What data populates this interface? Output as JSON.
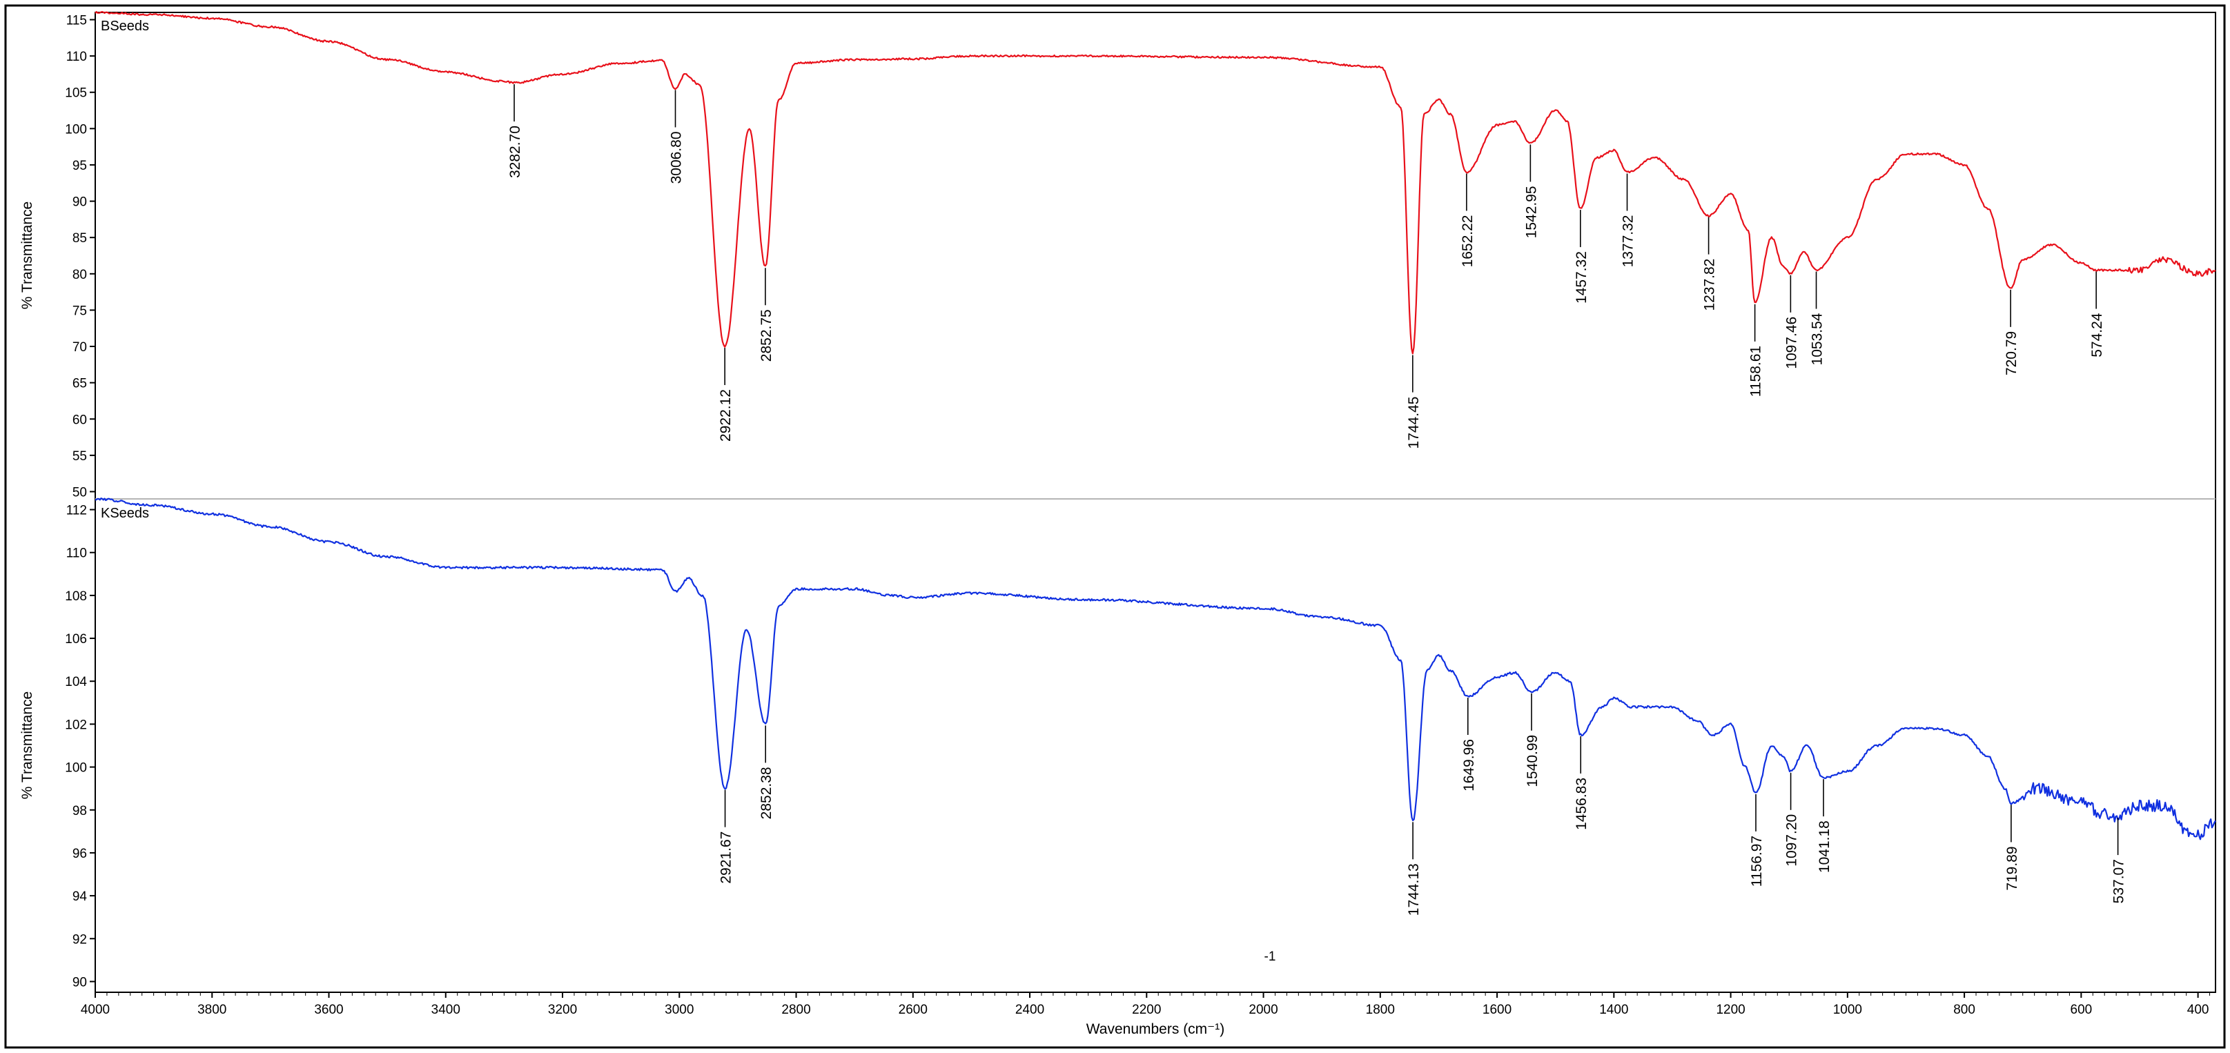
{
  "chart_data": [
    {
      "type": "line",
      "panel_label": "BSeeds",
      "ylabel": "% Transmittance",
      "xlabel": "",
      "xlim": [
        4000,
        370
      ],
      "ylim": [
        49,
        116
      ],
      "x_reversed": true,
      "yticks": [
        50,
        55,
        60,
        65,
        70,
        75,
        80,
        85,
        90,
        95,
        100,
        105,
        110,
        115
      ],
      "color": "#e8101a",
      "baseline_points": [
        [
          4000,
          116
        ],
        [
          3900,
          115.7
        ],
        [
          3800,
          115.2
        ],
        [
          3700,
          114
        ],
        [
          3600,
          112
        ],
        [
          3500,
          109.5
        ],
        [
          3400,
          107.8
        ],
        [
          3300,
          106.5
        ],
        [
          3282.7,
          106.3
        ],
        [
          3200,
          107.5
        ],
        [
          3100,
          109
        ],
        [
          3030,
          109.4
        ],
        [
          3006.8,
          105.5
        ],
        [
          2990,
          107.5
        ],
        [
          2965,
          106
        ],
        [
          2922.12,
          70
        ],
        [
          2880,
          100
        ],
        [
          2852.75,
          81
        ],
        [
          2830,
          104
        ],
        [
          2800,
          109
        ],
        [
          2700,
          109.5
        ],
        [
          2600,
          109.6
        ],
        [
          2500,
          110
        ],
        [
          2300,
          110
        ],
        [
          2000,
          109.8
        ],
        [
          1800,
          108.5
        ],
        [
          1765,
          103
        ],
        [
          1744.45,
          69
        ],
        [
          1725,
          102
        ],
        [
          1700,
          104
        ],
        [
          1680,
          102
        ],
        [
          1652.22,
          94
        ],
        [
          1600,
          100.5
        ],
        [
          1570,
          101
        ],
        [
          1542.95,
          98
        ],
        [
          1500,
          102.5
        ],
        [
          1480,
          101
        ],
        [
          1457.32,
          89
        ],
        [
          1430,
          96
        ],
        [
          1400,
          97
        ],
        [
          1377.32,
          94
        ],
        [
          1330,
          96
        ],
        [
          1280,
          93
        ],
        [
          1237.82,
          88
        ],
        [
          1200,
          91
        ],
        [
          1170,
          86
        ],
        [
          1158.61,
          76
        ],
        [
          1130,
          85
        ],
        [
          1110,
          81
        ],
        [
          1097.46,
          80
        ],
        [
          1075,
          83
        ],
        [
          1053.54,
          80.5
        ],
        [
          1000,
          85
        ],
        [
          950,
          93
        ],
        [
          900,
          96.5
        ],
        [
          850,
          96.5
        ],
        [
          800,
          95
        ],
        [
          760,
          89
        ],
        [
          720.79,
          78
        ],
        [
          700,
          82
        ],
        [
          650,
          84
        ],
        [
          600,
          81.5
        ],
        [
          574.24,
          80.5
        ],
        [
          500,
          80.5
        ],
        [
          460,
          82
        ],
        [
          400,
          80
        ],
        [
          370,
          80.5
        ]
      ],
      "annotations": [
        {
          "x": 3282.7,
          "y": 106.3,
          "label": "3282.70"
        },
        {
          "x": 3006.8,
          "y": 105.5,
          "label": "3006.80"
        },
        {
          "x": 2922.12,
          "y": 70,
          "label": "2922.12"
        },
        {
          "x": 2852.75,
          "y": 81,
          "label": "2852.75"
        },
        {
          "x": 1744.45,
          "y": 69,
          "label": "1744.45"
        },
        {
          "x": 1652.22,
          "y": 94,
          "label": "1652.22"
        },
        {
          "x": 1542.95,
          "y": 98,
          "label": "1542.95"
        },
        {
          "x": 1457.32,
          "y": 89,
          "label": "1457.32"
        },
        {
          "x": 1377.32,
          "y": 94,
          "label": "1377.32"
        },
        {
          "x": 1237.82,
          "y": 88,
          "label": "1237.82"
        },
        {
          "x": 1158.61,
          "y": 76,
          "label": "1158.61"
        },
        {
          "x": 1097.46,
          "y": 80,
          "label": "1097.46"
        },
        {
          "x": 1053.54,
          "y": 80.5,
          "label": "1053.54"
        },
        {
          "x": 720.79,
          "y": 78,
          "label": "720.79"
        },
        {
          "x": 574.24,
          "y": 80.5,
          "label": "574.24"
        }
      ]
    },
    {
      "type": "line",
      "panel_label": "KSeeds",
      "ylabel": "% Transmittance",
      "xlabel": "Wavenumbers (cm⁻¹)",
      "xlim": [
        4000,
        370
      ],
      "ylim": [
        89.5,
        112.5
      ],
      "x_reversed": true,
      "xticks": [
        4000,
        3800,
        3600,
        3400,
        3200,
        3000,
        2800,
        2600,
        2400,
        2200,
        2000,
        1800,
        1600,
        1400,
        1200,
        1000,
        800,
        600,
        400
      ],
      "yticks": [
        90,
        92,
        94,
        96,
        98,
        100,
        102,
        104,
        106,
        108,
        110,
        112
      ],
      "color": "#1030e0",
      "baseline_points": [
        [
          4000,
          112.5
        ],
        [
          3900,
          112.2
        ],
        [
          3800,
          111.8
        ],
        [
          3700,
          111.2
        ],
        [
          3600,
          110.5
        ],
        [
          3500,
          109.8
        ],
        [
          3400,
          109.3
        ],
        [
          3300,
          109.3
        ],
        [
          3200,
          109.3
        ],
        [
          3030,
          109.2
        ],
        [
          3006,
          108.2
        ],
        [
          2985,
          108.8
        ],
        [
          2960,
          108
        ],
        [
          2921.67,
          99
        ],
        [
          2885,
          106.4
        ],
        [
          2852.38,
          102
        ],
        [
          2830,
          107.5
        ],
        [
          2800,
          108.3
        ],
        [
          2700,
          108.3
        ],
        [
          2640,
          108
        ],
        [
          2600,
          107.9
        ],
        [
          2500,
          108.1
        ],
        [
          2300,
          107.8
        ],
        [
          2000,
          107.4
        ],
        [
          1900,
          107
        ],
        [
          1800,
          106.6
        ],
        [
          1765,
          105
        ],
        [
          1744.13,
          97.5
        ],
        [
          1720,
          104.5
        ],
        [
          1700,
          105.2
        ],
        [
          1680,
          104.5
        ],
        [
          1649.96,
          103.3
        ],
        [
          1600,
          104.2
        ],
        [
          1570,
          104.4
        ],
        [
          1540.99,
          103.5
        ],
        [
          1500,
          104.4
        ],
        [
          1475,
          104
        ],
        [
          1456.83,
          101.5
        ],
        [
          1420,
          102.8
        ],
        [
          1400,
          103.2
        ],
        [
          1370,
          102.8
        ],
        [
          1300,
          102.8
        ],
        [
          1260,
          102.2
        ],
        [
          1230,
          101.5
        ],
        [
          1200,
          102
        ],
        [
          1175,
          100
        ],
        [
          1156.97,
          98.8
        ],
        [
          1130,
          101
        ],
        [
          1110,
          100.5
        ],
        [
          1097.2,
          99.8
        ],
        [
          1070,
          101
        ],
        [
          1041.18,
          99.5
        ],
        [
          1000,
          99.8
        ],
        [
          950,
          101
        ],
        [
          900,
          101.8
        ],
        [
          850,
          101.8
        ],
        [
          800,
          101.5
        ],
        [
          760,
          100.5
        ],
        [
          730,
          99
        ],
        [
          719.89,
          98.3
        ],
        [
          680,
          99
        ],
        [
          600,
          98.3
        ],
        [
          560,
          97.8
        ],
        [
          537.07,
          97.7
        ],
        [
          500,
          98.2
        ],
        [
          450,
          98.2
        ],
        [
          420,
          97
        ],
        [
          400,
          96.8
        ],
        [
          370,
          97.5
        ]
      ],
      "annotations": [
        {
          "x": 2921.67,
          "y": 99,
          "label": "2921.67"
        },
        {
          "x": 2852.38,
          "y": 102,
          "label": "2852.38"
        },
        {
          "x": 1744.13,
          "y": 97.5,
          "label": "1744.13"
        },
        {
          "x": 1649.96,
          "y": 103.3,
          "label": "1649.96"
        },
        {
          "x": 1540.99,
          "y": 103.5,
          "label": "1540.99"
        },
        {
          "x": 1456.83,
          "y": 101.5,
          "label": "1456.83"
        },
        {
          "x": 1156.97,
          "y": 98.8,
          "label": "1156.97"
        },
        {
          "x": 1097.2,
          "y": 99.8,
          "label": "1097.20"
        },
        {
          "x": 1041.18,
          "y": 99.5,
          "label": "1041.18"
        },
        {
          "x": 719.89,
          "y": 98.3,
          "label": "719.89"
        },
        {
          "x": 537.07,
          "y": 97.7,
          "label": "537.07"
        }
      ],
      "stray_text": "-1"
    }
  ]
}
